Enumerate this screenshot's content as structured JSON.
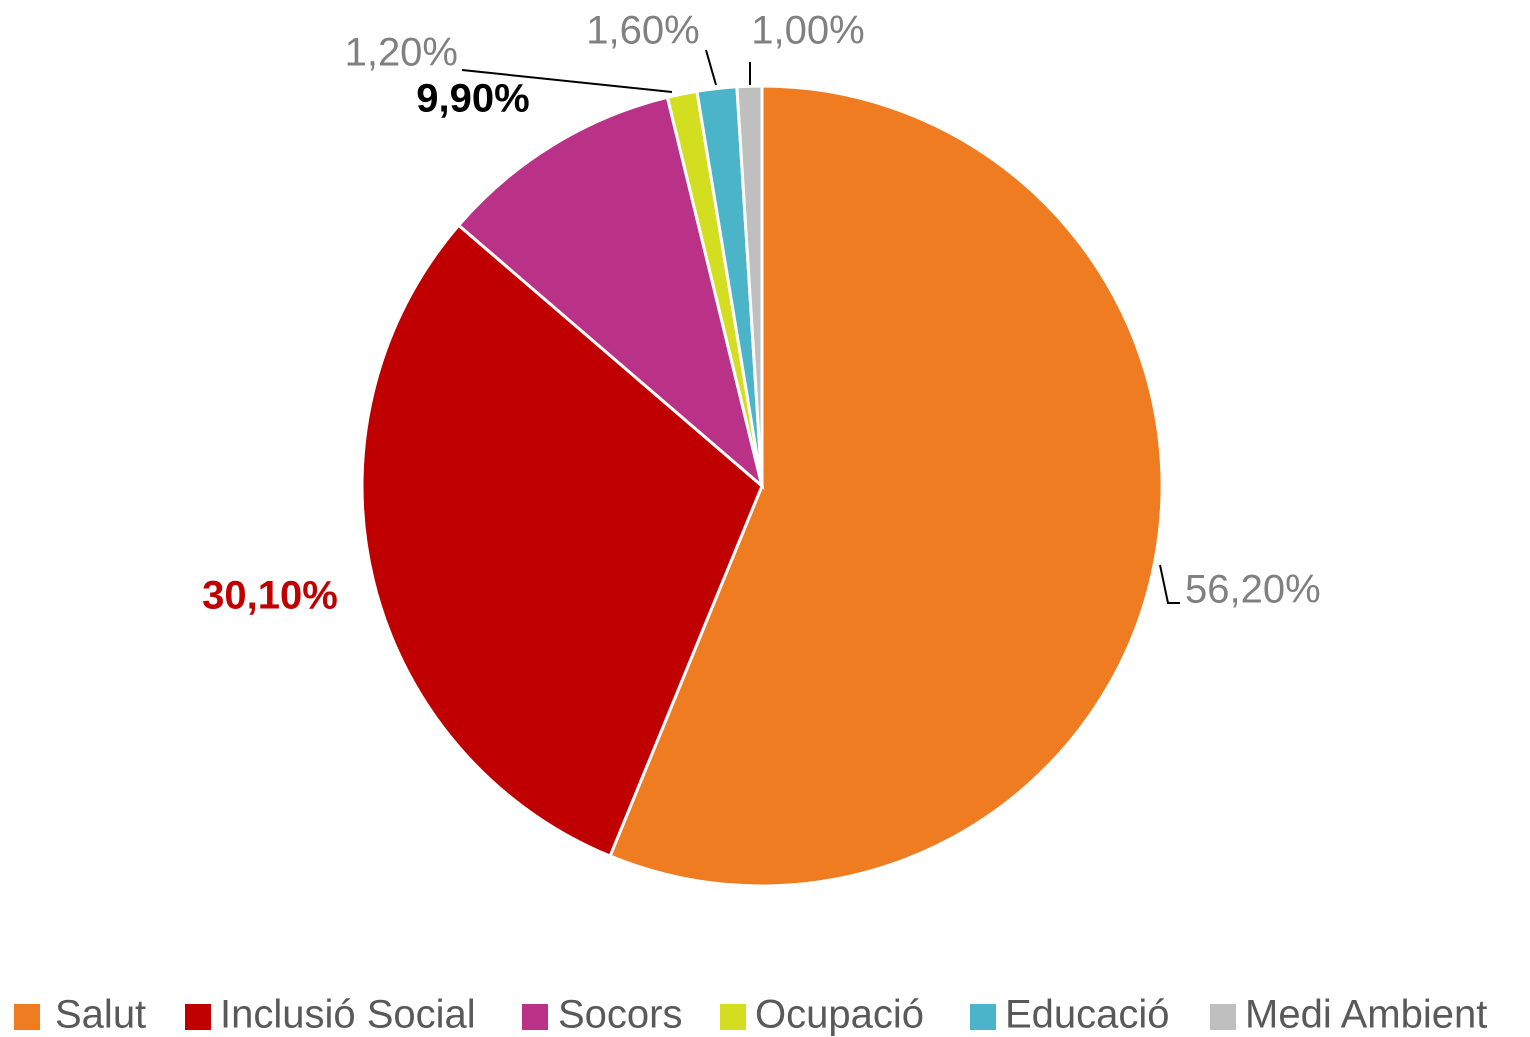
{
  "chart_data": {
    "type": "pie",
    "categories": [
      "Salut",
      "Inclusió Social",
      "Socors",
      "Ocupació",
      "Educació",
      "Medi Ambient"
    ],
    "values": [
      56.2,
      30.1,
      9.9,
      1.2,
      1.6,
      1.0
    ],
    "value_labels": [
      "56,20%",
      "30,10%",
      "9,90%",
      "1,20%",
      "1,60%",
      "1,00%"
    ],
    "colors": [
      "#f07c22",
      "#c00000",
      "#b93288",
      "#d4de21",
      "#4bb4c8",
      "#bfbfbf"
    ],
    "legend": "bottom"
  }
}
